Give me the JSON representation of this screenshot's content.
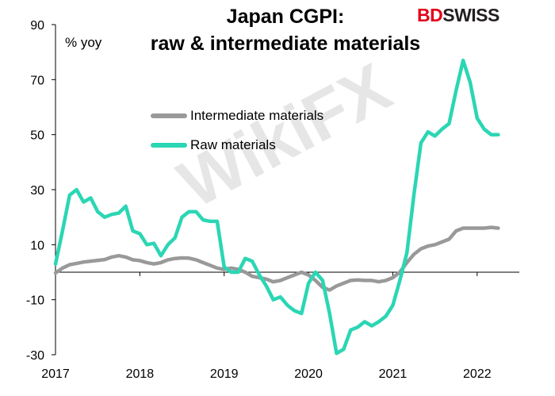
{
  "header": {
    "title_line1": "Japan CGPI:",
    "title_line2": "raw & intermediate materials",
    "unit_label": "% yoy"
  },
  "branding": {
    "logo_part1": "BD",
    "logo_part2": "SWISS",
    "watermark": "WikiFX"
  },
  "colors": {
    "intermediate": "#999999",
    "raw": "#2bd6b4",
    "axis": "#000000",
    "logo_red": "#e3001b"
  },
  "chart_data": {
    "type": "line",
    "title": "Japan CGPI: raw & intermediate materials",
    "ylabel": "% yoy",
    "ylim": [
      -30,
      90
    ],
    "yticks": [
      -30,
      -10,
      10,
      30,
      50,
      70,
      90
    ],
    "xlim": [
      2017,
      2022.5
    ],
    "xticks": [
      2017,
      2018,
      2019,
      2020,
      2021,
      2022
    ],
    "grid": false,
    "legend_position": "upper-left inside plot",
    "series": [
      {
        "name": "Intermediate materials",
        "x": [
          2017.0,
          2017.083,
          2017.167,
          2017.25,
          2017.333,
          2017.417,
          2017.5,
          2017.583,
          2017.667,
          2017.75,
          2017.833,
          2017.917,
          2018.0,
          2018.083,
          2018.167,
          2018.25,
          2018.333,
          2018.417,
          2018.5,
          2018.583,
          2018.667,
          2018.75,
          2018.833,
          2018.917,
          2019.0,
          2019.083,
          2019.167,
          2019.25,
          2019.333,
          2019.417,
          2019.5,
          2019.583,
          2019.667,
          2019.75,
          2019.833,
          2019.917,
          2020.0,
          2020.083,
          2020.167,
          2020.25,
          2020.333,
          2020.417,
          2020.5,
          2020.583,
          2020.667,
          2020.75,
          2020.833,
          2020.917,
          2021.0,
          2021.083,
          2021.167,
          2021.25,
          2021.333,
          2021.417,
          2021.5,
          2021.583,
          2021.667,
          2021.75,
          2021.833,
          2021.917,
          2022.0,
          2022.083,
          2022.167,
          2022.25
        ],
        "values": [
          -0.3,
          1.5,
          2.7,
          3.2,
          3.7,
          4.0,
          4.3,
          4.6,
          5.5,
          6.0,
          5.5,
          4.5,
          4.2,
          3.5,
          3.0,
          3.5,
          4.5,
          5.0,
          5.2,
          5.1,
          4.5,
          3.5,
          2.5,
          1.5,
          1.0,
          1.5,
          1.0,
          0.0,
          -1.5,
          -2.0,
          -2.5,
          -3.5,
          -3.0,
          -2.0,
          -1.0,
          0.0,
          -1.0,
          -3.0,
          -5.5,
          -6.5,
          -5.0,
          -4.0,
          -3.0,
          -2.8,
          -3.0,
          -3.0,
          -3.5,
          -3.0,
          -2.0,
          0.0,
          3.5,
          6.5,
          8.5,
          9.5,
          10.0,
          11.0,
          12.0,
          15.0,
          16.0,
          16.0,
          16.0,
          16.0,
          16.3,
          16.0
        ]
      },
      {
        "name": "Raw materials",
        "x": [
          2017.0,
          2017.083,
          2017.167,
          2017.25,
          2017.333,
          2017.417,
          2017.5,
          2017.583,
          2017.667,
          2017.75,
          2017.833,
          2017.917,
          2018.0,
          2018.083,
          2018.167,
          2018.25,
          2018.333,
          2018.417,
          2018.5,
          2018.583,
          2018.667,
          2018.75,
          2018.833,
          2018.917,
          2019.0,
          2019.083,
          2019.167,
          2019.25,
          2019.333,
          2019.417,
          2019.5,
          2019.583,
          2019.667,
          2019.75,
          2019.833,
          2019.917,
          2020.0,
          2020.083,
          2020.167,
          2020.25,
          2020.333,
          2020.417,
          2020.5,
          2020.583,
          2020.667,
          2020.75,
          2020.833,
          2020.917,
          2021.0,
          2021.083,
          2021.167,
          2021.25,
          2021.333,
          2021.417,
          2021.5,
          2021.583,
          2021.667,
          2021.75,
          2021.833,
          2021.917,
          2022.0,
          2022.083,
          2022.167,
          2022.25
        ],
        "values": [
          3.0,
          15.0,
          28.0,
          30.0,
          25.5,
          27.0,
          22.0,
          20.0,
          21.0,
          21.5,
          24.0,
          15.0,
          14.0,
          10.0,
          10.5,
          6.0,
          10.0,
          12.5,
          20.0,
          22.0,
          22.0,
          19.0,
          18.5,
          18.5,
          2.0,
          0.0,
          0.0,
          5.0,
          4.0,
          -1.0,
          -5.0,
          -10.0,
          -9.0,
          -12.0,
          -14.0,
          -15.0,
          -4.0,
          0.0,
          -3.0,
          -15.0,
          -29.5,
          -28.0,
          -21.0,
          -20.0,
          -18.0,
          -19.5,
          -18.0,
          -16.0,
          -12.0,
          -3.0,
          7.0,
          28.0,
          47.0,
          51.0,
          49.5,
          52.0,
          54.0,
          66.0,
          77.0,
          69.0,
          56.0,
          52.0,
          50.0,
          50.0
        ]
      }
    ]
  }
}
